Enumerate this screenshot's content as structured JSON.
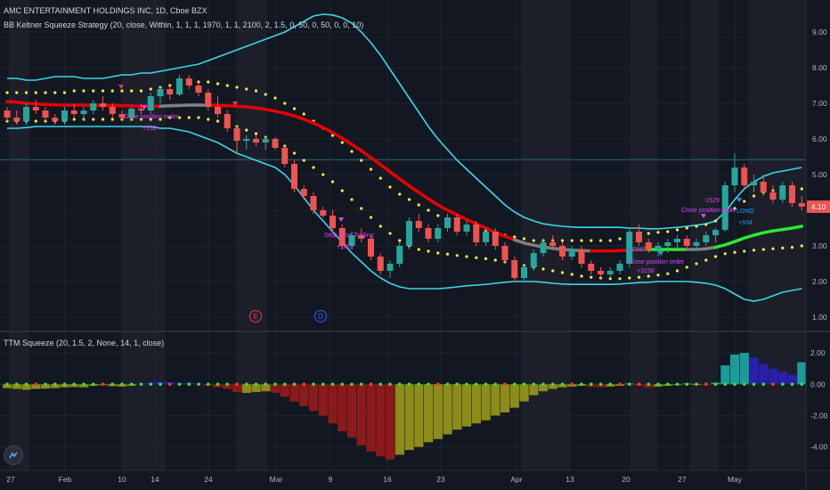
{
  "header": {
    "symbol_title": "AMC ENTERTAINMENT HOLDINGS INC, 1D, Cboe BZX",
    "strategy_title": "BB Keltner Squeeze Strategy (20, close, Within, 1, 1, 1, 1970, 1, 1, 2100, 2, 1.5, 0, 50, 0, 50, 0, 0, 10)",
    "ttm_title": "TTM Squeeze (20, 1.5, 2, None, 14, 1, close)"
  },
  "price_axis": {
    "labels": [
      "9.00",
      "8.00",
      "7.00",
      "6.00",
      "5.00",
      "4.00",
      "3.00",
      "2.00",
      "1.00"
    ],
    "last_price": "4.10",
    "last_price_color": "#ef5350"
  },
  "osc_axis": {
    "labels": [
      "2.00",
      "0.00",
      "-2.00",
      "-4.00"
    ]
  },
  "time_axis": {
    "labels": [
      "27",
      "Feb",
      "10",
      "14",
      "24",
      "Mar",
      "9",
      "16",
      "23",
      "Apr",
      "13",
      "20",
      "27",
      "May"
    ]
  },
  "events": [
    {
      "label": "E",
      "color": "#f23645"
    },
    {
      "label": "D",
      "color": "#2962ff"
    }
  ],
  "trade_labels": [
    {
      "text": "Close position order",
      "color": "#e040fb"
    },
    {
      "text": "+992",
      "color": "#e040fb"
    },
    {
      "text": "Stop Loss Trailing",
      "color": "#e040fb"
    },
    {
      "text": "+1022",
      "color": "#e040fb"
    },
    {
      "text": "LONG",
      "color": "#2196f3"
    },
    {
      "text": "Close position order",
      "color": "#e040fb"
    },
    {
      "text": "+3158",
      "color": "#e040fb"
    },
    {
      "text": "-1529",
      "color": "#e040fb"
    },
    {
      "text": "Close position order",
      "color": "#e040fb"
    },
    {
      "text": "LONG",
      "color": "#2196f3"
    },
    {
      "text": "+934",
      "color": "#2196f3"
    }
  ],
  "colors": {
    "background": "#131722",
    "shade": "#1c1f2a",
    "grid": "#1f2330",
    "up": "#26a69a",
    "down": "#ef5350",
    "bb": "#3ad6e8",
    "kc_dots": "#f5f233",
    "basis_down": "#e60000",
    "basis_neutral": "#808080",
    "basis_up": "#2ee82e",
    "hist_teal": "#1e9a99",
    "hist_blue": "#2a1fa8",
    "hist_red": "#8c1a1a",
    "hist_olive": "#8c8c1a",
    "squeeze_on": "#ff3b30",
    "squeeze_off": "#39e639",
    "text": "#b2b5be"
  },
  "chart_data": {
    "type": "candlestick",
    "y_range": [
      0.6,
      9.4
    ],
    "candles": [
      [
        6.8,
        6.9,
        6.5,
        6.6
      ],
      [
        6.6,
        6.8,
        6.4,
        6.5
      ],
      [
        6.5,
        7.0,
        6.4,
        6.9
      ],
      [
        6.9,
        7.1,
        6.7,
        6.8
      ],
      [
        6.8,
        6.9,
        6.5,
        6.6
      ],
      [
        6.6,
        6.7,
        6.4,
        6.5
      ],
      [
        6.5,
        6.9,
        6.4,
        6.8
      ],
      [
        6.8,
        7.0,
        6.6,
        6.7
      ],
      [
        6.7,
        6.9,
        6.5,
        6.8
      ],
      [
        6.8,
        7.1,
        6.7,
        7.0
      ],
      [
        7.0,
        7.2,
        6.8,
        6.9
      ],
      [
        6.9,
        7.0,
        6.6,
        6.7
      ],
      [
        6.7,
        6.8,
        6.5,
        6.6
      ],
      [
        6.6,
        6.9,
        6.5,
        6.85
      ],
      [
        6.85,
        7.0,
        6.7,
        6.8
      ],
      [
        6.8,
        7.3,
        6.7,
        7.2
      ],
      [
        7.2,
        7.5,
        7.0,
        7.4
      ],
      [
        7.4,
        7.5,
        7.1,
        7.25
      ],
      [
        7.25,
        7.8,
        7.2,
        7.7
      ],
      [
        7.7,
        7.8,
        7.4,
        7.5
      ],
      [
        7.5,
        7.6,
        7.2,
        7.3
      ],
      [
        7.3,
        7.4,
        6.8,
        6.9
      ],
      [
        6.9,
        7.2,
        6.6,
        6.7
      ],
      [
        6.7,
        6.8,
        6.2,
        6.3
      ],
      [
        6.3,
        6.4,
        5.6,
        5.95
      ],
      [
        5.95,
        6.1,
        5.7,
        6.0
      ],
      [
        6.0,
        6.1,
        5.8,
        5.9
      ],
      [
        5.9,
        6.1,
        5.7,
        6.0
      ],
      [
        6.0,
        6.05,
        5.7,
        5.75
      ],
      [
        5.75,
        5.8,
        5.2,
        5.3
      ],
      [
        5.3,
        5.4,
        4.5,
        4.6
      ],
      [
        4.6,
        4.7,
        4.3,
        4.4
      ],
      [
        4.4,
        4.5,
        3.9,
        4.0
      ],
      [
        4.0,
        4.1,
        3.8,
        3.85
      ],
      [
        3.85,
        4.0,
        3.4,
        3.5
      ],
      [
        3.5,
        3.6,
        2.9,
        3.0
      ],
      [
        3.0,
        3.4,
        2.9,
        3.3
      ],
      [
        3.3,
        3.5,
        3.1,
        3.2
      ],
      [
        3.2,
        3.3,
        2.6,
        2.7
      ],
      [
        2.7,
        2.8,
        2.2,
        2.3
      ],
      [
        2.3,
        2.6,
        2.1,
        2.5
      ],
      [
        2.5,
        3.1,
        2.4,
        3.0
      ],
      [
        3.0,
        3.8,
        2.9,
        3.7
      ],
      [
        3.7,
        3.9,
        3.4,
        3.5
      ],
      [
        3.5,
        3.6,
        3.1,
        3.2
      ],
      [
        3.2,
        3.6,
        3.1,
        3.5
      ],
      [
        3.5,
        3.9,
        3.4,
        3.8
      ],
      [
        3.8,
        3.9,
        3.3,
        3.4
      ],
      [
        3.4,
        3.7,
        3.3,
        3.6
      ],
      [
        3.6,
        3.7,
        3.0,
        3.1
      ],
      [
        3.1,
        3.5,
        3.0,
        3.4
      ],
      [
        3.4,
        3.5,
        2.9,
        3.0
      ],
      [
        3.0,
        3.1,
        2.5,
        2.6
      ],
      [
        2.6,
        2.7,
        2.0,
        2.1
      ],
      [
        2.1,
        2.5,
        2.0,
        2.4
      ],
      [
        2.4,
        2.9,
        2.3,
        2.8
      ],
      [
        2.8,
        3.2,
        2.7,
        3.1
      ],
      [
        3.1,
        3.3,
        2.9,
        3.0
      ],
      [
        3.0,
        3.1,
        2.6,
        2.7
      ],
      [
        2.7,
        3.0,
        2.6,
        2.9
      ],
      [
        2.9,
        3.0,
        2.4,
        2.5
      ],
      [
        2.5,
        2.6,
        2.2,
        2.3
      ],
      [
        2.3,
        2.4,
        2.1,
        2.2
      ],
      [
        2.2,
        2.4,
        2.1,
        2.3
      ],
      [
        2.3,
        2.6,
        2.2,
        2.5
      ],
      [
        2.5,
        3.5,
        2.4,
        3.4
      ],
      [
        3.4,
        3.6,
        3.0,
        3.1
      ],
      [
        3.1,
        3.2,
        2.8,
        2.9
      ],
      [
        2.9,
        3.1,
        2.7,
        3.0
      ],
      [
        3.0,
        3.2,
        2.8,
        3.1
      ],
      [
        3.1,
        3.3,
        2.9,
        3.2
      ],
      [
        3.2,
        3.3,
        2.9,
        3.0
      ],
      [
        3.0,
        3.2,
        2.9,
        3.1
      ],
      [
        3.1,
        3.4,
        3.0,
        3.3
      ],
      [
        3.3,
        3.5,
        3.1,
        3.45
      ],
      [
        3.45,
        4.8,
        3.4,
        4.7
      ],
      [
        4.7,
        5.6,
        4.5,
        5.2
      ],
      [
        5.2,
        5.3,
        4.6,
        4.7
      ],
      [
        4.7,
        5.0,
        4.5,
        4.8
      ],
      [
        4.8,
        5.0,
        4.4,
        4.5
      ],
      [
        4.5,
        4.7,
        4.2,
        4.3
      ],
      [
        4.3,
        4.8,
        4.2,
        4.7
      ],
      [
        4.7,
        4.8,
        4.1,
        4.2
      ],
      [
        4.2,
        4.4,
        4.0,
        4.1
      ]
    ],
    "bb_upper": [
      7.7,
      7.7,
      7.65,
      7.65,
      7.7,
      7.75,
      7.75,
      7.75,
      7.7,
      7.7,
      7.7,
      7.75,
      7.8,
      7.8,
      7.85,
      7.85,
      7.9,
      7.95,
      8.0,
      8.05,
      8.1,
      8.2,
      8.3,
      8.4,
      8.5,
      8.6,
      8.7,
      8.8,
      8.9,
      9.0,
      9.15,
      9.3,
      9.45,
      9.5,
      9.48,
      9.4,
      9.25,
      9.0,
      8.7,
      8.35,
      7.95,
      7.55,
      7.15,
      6.75,
      6.35,
      6.0,
      5.7,
      5.4,
      5.15,
      4.9,
      4.65,
      4.4,
      4.15,
      3.95,
      3.8,
      3.7,
      3.62,
      3.58,
      3.55,
      3.53,
      3.52,
      3.52,
      3.52,
      3.52,
      3.52,
      3.5,
      3.5,
      3.48,
      3.48,
      3.5,
      3.52,
      3.55,
      3.58,
      3.62,
      3.7,
      3.95,
      4.3,
      4.6,
      4.8,
      4.95,
      5.05,
      5.1,
      5.15,
      5.2
    ],
    "bb_lower": [
      6.3,
      6.3,
      6.32,
      6.35,
      6.35,
      6.35,
      6.35,
      6.35,
      6.35,
      6.35,
      6.35,
      6.35,
      6.35,
      6.35,
      6.35,
      6.35,
      6.3,
      6.3,
      6.25,
      6.2,
      6.1,
      6.0,
      5.9,
      5.75,
      5.6,
      5.5,
      5.4,
      5.3,
      5.2,
      5.0,
      4.7,
      4.35,
      4.0,
      3.7,
      3.4,
      3.1,
      2.8,
      2.55,
      2.3,
      2.1,
      1.95,
      1.85,
      1.8,
      1.8,
      1.8,
      1.8,
      1.82,
      1.85,
      1.88,
      1.9,
      1.92,
      1.95,
      1.98,
      2.0,
      2.0,
      2.0,
      1.98,
      1.95,
      1.93,
      1.92,
      1.92,
      1.92,
      1.92,
      1.92,
      1.93,
      1.95,
      1.97,
      1.98,
      2.0,
      2.0,
      2.0,
      2.0,
      1.98,
      1.95,
      1.9,
      1.8,
      1.65,
      1.5,
      1.45,
      1.5,
      1.6,
      1.7,
      1.75,
      1.8
    ],
    "kc_upper": [
      7.3,
      7.3,
      7.3,
      7.3,
      7.3,
      7.3,
      7.3,
      7.35,
      7.35,
      7.35,
      7.35,
      7.35,
      7.35,
      7.35,
      7.35,
      7.4,
      7.45,
      7.5,
      7.55,
      7.6,
      7.6,
      7.6,
      7.55,
      7.5,
      7.45,
      7.4,
      7.35,
      7.25,
      7.15,
      7.0,
      6.85,
      6.7,
      6.5,
      6.3,
      6.1,
      5.9,
      5.65,
      5.4,
      5.15,
      4.9,
      4.65,
      4.45,
      4.3,
      4.15,
      4.0,
      3.85,
      3.72,
      3.62,
      3.55,
      3.48,
      3.42,
      3.35,
      3.3,
      3.25,
      3.2,
      3.15,
      3.15,
      3.15,
      3.15,
      3.15,
      3.15,
      3.15,
      3.15,
      3.15,
      3.2,
      3.25,
      3.3,
      3.35,
      3.38,
      3.4,
      3.45,
      3.5,
      3.55,
      3.6,
      3.7,
      3.85,
      4.05,
      4.25,
      4.4,
      4.5,
      4.55,
      4.6,
      4.6,
      4.6
    ],
    "kc_lower": [
      6.5,
      6.5,
      6.5,
      6.5,
      6.5,
      6.5,
      6.5,
      6.55,
      6.55,
      6.55,
      6.55,
      6.55,
      6.55,
      6.55,
      6.55,
      6.55,
      6.55,
      6.6,
      6.6,
      6.6,
      6.6,
      6.55,
      6.5,
      6.45,
      6.35,
      6.25,
      6.15,
      6.05,
      5.95,
      5.8,
      5.6,
      5.4,
      5.2,
      5.0,
      4.8,
      4.55,
      4.3,
      4.05,
      3.8,
      3.55,
      3.35,
      3.15,
      3.0,
      2.9,
      2.85,
      2.8,
      2.77,
      2.73,
      2.7,
      2.67,
      2.64,
      2.6,
      2.55,
      2.5,
      2.45,
      2.4,
      2.35,
      2.3,
      2.25,
      2.2,
      2.15,
      2.12,
      2.1,
      2.08,
      2.08,
      2.1,
      2.12,
      2.15,
      2.18,
      2.22,
      2.3,
      2.4,
      2.5,
      2.6,
      2.7,
      2.78,
      2.82,
      2.85,
      2.88,
      2.9,
      2.92,
      2.94,
      2.96,
      3.0
    ],
    "basis": [
      7.05,
      7.03,
      7.0,
      6.98,
      6.97,
      6.96,
      6.95,
      6.95,
      6.95,
      6.94,
      6.94,
      6.94,
      6.93,
      6.93,
      6.92,
      6.92,
      6.92,
      6.93,
      6.94,
      6.95,
      6.95,
      6.95,
      6.94,
      6.93,
      6.92,
      6.9,
      6.87,
      6.83,
      6.78,
      6.72,
      6.65,
      6.55,
      6.45,
      6.32,
      6.18,
      6.02,
      5.85,
      5.67,
      5.48,
      5.28,
      5.08,
      4.88,
      4.68,
      4.5,
      4.32,
      4.15,
      4.0,
      3.87,
      3.74,
      3.62,
      3.5,
      3.38,
      3.27,
      3.17,
      3.08,
      3.02,
      2.97,
      2.93,
      2.9,
      2.88,
      2.87,
      2.86,
      2.86,
      2.86,
      2.87,
      2.88,
      2.89,
      2.9,
      2.9,
      2.9,
      2.9,
      2.9,
      2.9,
      2.92,
      2.96,
      3.03,
      3.12,
      3.22,
      3.3,
      3.37,
      3.42,
      3.46,
      3.5,
      3.55
    ],
    "basis_state": [
      "d",
      "d",
      "d",
      "d",
      "d",
      "d",
      "d",
      "d",
      "d",
      "d",
      "d",
      "d",
      "d",
      "d",
      "d",
      "d",
      "d",
      "n",
      "n",
      "n",
      "n",
      "n",
      "d",
      "d",
      "d",
      "d",
      "d",
      "d",
      "d",
      "d",
      "d",
      "d",
      "d",
      "d",
      "d",
      "d",
      "d",
      "d",
      "d",
      "d",
      "d",
      "d",
      "d",
      "d",
      "d",
      "d",
      "d",
      "d",
      "d",
      "d",
      "d",
      "d",
      "d",
      "d",
      "n",
      "n",
      "n",
      "n",
      "n",
      "n",
      "n",
      "n",
      "d",
      "d",
      "d",
      "d",
      "d",
      "d",
      "u",
      "u",
      "u",
      "u",
      "n",
      "n",
      "n",
      "u",
      "u",
      "u",
      "u",
      "u",
      "u",
      "u",
      "u",
      "u"
    ],
    "squeeze_momentum": [
      -0.25,
      -0.3,
      -0.35,
      -0.3,
      -0.28,
      -0.25,
      -0.2,
      -0.18,
      -0.2,
      -0.1,
      -0.05,
      -0.12,
      -0.15,
      -0.1,
      0.05,
      0.1,
      0.15,
      0.12,
      0.08,
      0.1,
      0.05,
      -0.1,
      -0.2,
      -0.3,
      -0.5,
      -0.55,
      -0.5,
      -0.45,
      -0.55,
      -0.8,
      -1.1,
      -1.4,
      -1.7,
      -2.0,
      -2.5,
      -3.0,
      -3.4,
      -3.9,
      -4.3,
      -4.6,
      -4.8,
      -4.5,
      -4.2,
      -4.0,
      -3.7,
      -3.5,
      -3.2,
      -2.9,
      -2.7,
      -2.5,
      -2.3,
      -2.0,
      -1.8,
      -1.5,
      -1.1,
      -0.7,
      -0.45,
      -0.3,
      -0.2,
      -0.15,
      -0.1,
      -0.18,
      -0.2,
      -0.15,
      -0.1,
      0.05,
      -0.1,
      -0.2,
      -0.15,
      -0.1,
      -0.05,
      0.05,
      0.02,
      -0.05,
      0.1,
      1.2,
      1.9,
      2.0,
      1.7,
      1.3,
      1.0,
      0.8,
      0.6,
      1.4
    ],
    "hist_color": [
      "o",
      "o",
      "o",
      "o",
      "o",
      "o",
      "o",
      "o",
      "o",
      "o",
      "o",
      "o",
      "o",
      "o",
      "b",
      "b",
      "b",
      "b",
      "b",
      "b",
      "b",
      "r",
      "r",
      "r",
      "r",
      "o",
      "o",
      "o",
      "r",
      "r",
      "r",
      "r",
      "r",
      "r",
      "r",
      "r",
      "r",
      "r",
      "r",
      "r",
      "r",
      "o",
      "o",
      "o",
      "o",
      "o",
      "o",
      "o",
      "o",
      "o",
      "o",
      "o",
      "o",
      "o",
      "o",
      "o",
      "o",
      "o",
      "o",
      "o",
      "o",
      "r",
      "r",
      "o",
      "o",
      "t",
      "r",
      "r",
      "o",
      "o",
      "o",
      "t",
      "o",
      "r",
      "t",
      "t",
      "t",
      "t",
      "b",
      "b",
      "b",
      "b",
      "b",
      "t"
    ],
    "osc_range": [
      -5.5,
      3.2
    ]
  }
}
